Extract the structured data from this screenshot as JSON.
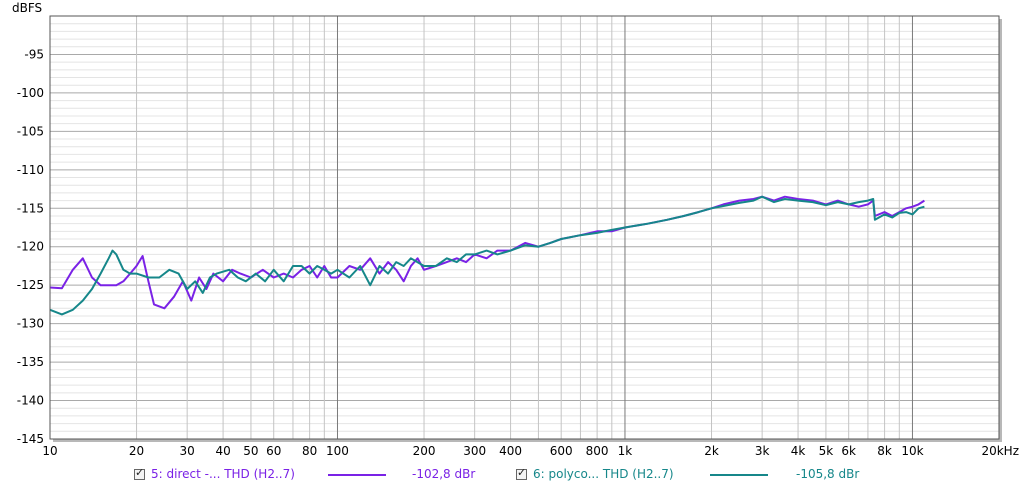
{
  "chart_data": {
    "type": "line",
    "ylabel": "dBFS",
    "xscale": "log",
    "xlim": [
      10,
      20000
    ],
    "ylim": [
      -145,
      -90
    ],
    "y_ticks": [
      -95,
      -100,
      -105,
      -110,
      -115,
      -120,
      -125,
      -130,
      -135,
      -140,
      -145
    ],
    "y_tick_labels": [
      "-95",
      "-100",
      "-105",
      "-110",
      "-115",
      "-120",
      "-125",
      "-130",
      "-135",
      "-140",
      "-145"
    ],
    "x_ticks": [
      10,
      20,
      30,
      40,
      50,
      60,
      80,
      100,
      200,
      300,
      400,
      600,
      800,
      1000,
      2000,
      3000,
      4000,
      5000,
      6000,
      8000,
      10000,
      20000
    ],
    "x_tick_labels": [
      "10",
      "20",
      "30",
      "40",
      "50",
      "60",
      "80",
      "100",
      "200",
      "300",
      "400",
      "600",
      "800",
      "1k",
      "2k",
      "3k",
      "4k",
      "5k",
      "6k",
      "8k",
      "10k",
      "20kHz"
    ],
    "grid": true,
    "series": [
      {
        "name": "5: direct -... THD (H2..7)",
        "color": "#7a22e6",
        "offset_label": "-102,8 dBr",
        "points": [
          [
            10,
            -125.3
          ],
          [
            11,
            -125.4
          ],
          [
            12,
            -123
          ],
          [
            13,
            -121.5
          ],
          [
            14,
            -124
          ],
          [
            15,
            -125
          ],
          [
            17,
            -125
          ],
          [
            18,
            -124.5
          ],
          [
            19,
            -123.5
          ],
          [
            20,
            -122.5
          ],
          [
            21,
            -121.2
          ],
          [
            22,
            -124.5
          ],
          [
            23,
            -127.5
          ],
          [
            25,
            -128
          ],
          [
            27,
            -126.5
          ],
          [
            29,
            -124.5
          ],
          [
            31,
            -127
          ],
          [
            33,
            -124
          ],
          [
            35,
            -125.5
          ],
          [
            37,
            -123.5
          ],
          [
            40,
            -124.5
          ],
          [
            43,
            -123
          ],
          [
            46,
            -123.5
          ],
          [
            50,
            -124
          ],
          [
            55,
            -123
          ],
          [
            60,
            -124
          ],
          [
            65,
            -123.5
          ],
          [
            70,
            -124
          ],
          [
            75,
            -123
          ],
          [
            80,
            -122.5
          ],
          [
            85,
            -124
          ],
          [
            90,
            -122.5
          ],
          [
            95,
            -124
          ],
          [
            100,
            -124
          ],
          [
            110,
            -122.5
          ],
          [
            120,
            -123
          ],
          [
            130,
            -121.5
          ],
          [
            140,
            -123.5
          ],
          [
            150,
            -122
          ],
          [
            160,
            -123
          ],
          [
            170,
            -124.5
          ],
          [
            180,
            -122.5
          ],
          [
            190,
            -121.5
          ],
          [
            200,
            -123
          ],
          [
            220,
            -122.5
          ],
          [
            240,
            -122
          ],
          [
            260,
            -121.5
          ],
          [
            280,
            -122
          ],
          [
            300,
            -121
          ],
          [
            330,
            -121.5
          ],
          [
            360,
            -120.5
          ],
          [
            400,
            -120.5
          ],
          [
            450,
            -119.5
          ],
          [
            500,
            -120
          ],
          [
            550,
            -119.5
          ],
          [
            600,
            -119
          ],
          [
            700,
            -118.5
          ],
          [
            800,
            -118
          ],
          [
            900,
            -118
          ],
          [
            1000,
            -117.5
          ],
          [
            1200,
            -117
          ],
          [
            1400,
            -116.5
          ],
          [
            1600,
            -116
          ],
          [
            1800,
            -115.5
          ],
          [
            2000,
            -115
          ],
          [
            2200,
            -114.5
          ],
          [
            2500,
            -114
          ],
          [
            2800,
            -113.8
          ],
          [
            3000,
            -113.5
          ],
          [
            3300,
            -114
          ],
          [
            3600,
            -113.5
          ],
          [
            4000,
            -113.8
          ],
          [
            4500,
            -114
          ],
          [
            5000,
            -114.5
          ],
          [
            5500,
            -114
          ],
          [
            6000,
            -114.5
          ],
          [
            6500,
            -114.8
          ],
          [
            7000,
            -114.5
          ],
          [
            7300,
            -114
          ],
          [
            7400,
            -116
          ],
          [
            8000,
            -115.5
          ],
          [
            8500,
            -116
          ],
          [
            9000,
            -115.5
          ],
          [
            9500,
            -115
          ],
          [
            10000,
            -114.8
          ],
          [
            10500,
            -114.5
          ],
          [
            11000,
            -114
          ]
        ]
      },
      {
        "name": "6: polyco... THD (H2..7)",
        "color": "#16878a",
        "offset_label": "-105,8 dBr",
        "points": [
          [
            10,
            -128.2
          ],
          [
            11,
            -128.8
          ],
          [
            12,
            -128.2
          ],
          [
            13,
            -127
          ],
          [
            14,
            -125.5
          ],
          [
            15,
            -123.5
          ],
          [
            16,
            -121.5
          ],
          [
            16.5,
            -120.5
          ],
          [
            17,
            -121
          ],
          [
            18,
            -123
          ],
          [
            19,
            -123.5
          ],
          [
            20,
            -123.5
          ],
          [
            22,
            -124
          ],
          [
            24,
            -124
          ],
          [
            26,
            -123
          ],
          [
            28,
            -123.5
          ],
          [
            30,
            -125.5
          ],
          [
            32,
            -124.5
          ],
          [
            34,
            -126
          ],
          [
            36,
            -124
          ],
          [
            38,
            -123.5
          ],
          [
            42,
            -123
          ],
          [
            45,
            -124
          ],
          [
            48,
            -124.5
          ],
          [
            52,
            -123.5
          ],
          [
            56,
            -124.5
          ],
          [
            60,
            -123
          ],
          [
            65,
            -124.5
          ],
          [
            70,
            -122.5
          ],
          [
            75,
            -122.5
          ],
          [
            80,
            -123.5
          ],
          [
            85,
            -122.5
          ],
          [
            90,
            -123
          ],
          [
            95,
            -123.5
          ],
          [
            100,
            -123
          ],
          [
            110,
            -124
          ],
          [
            120,
            -122.5
          ],
          [
            130,
            -125
          ],
          [
            140,
            -122.5
          ],
          [
            150,
            -123.5
          ],
          [
            160,
            -122
          ],
          [
            170,
            -122.5
          ],
          [
            180,
            -121.5
          ],
          [
            200,
            -122.5
          ],
          [
            220,
            -122.5
          ],
          [
            240,
            -121.5
          ],
          [
            260,
            -122
          ],
          [
            280,
            -121
          ],
          [
            300,
            -121
          ],
          [
            330,
            -120.5
          ],
          [
            360,
            -121
          ],
          [
            400,
            -120.5
          ],
          [
            450,
            -119.8
          ],
          [
            500,
            -120
          ],
          [
            550,
            -119.5
          ],
          [
            600,
            -119
          ],
          [
            700,
            -118.5
          ],
          [
            800,
            -118.2
          ],
          [
            900,
            -117.8
          ],
          [
            1000,
            -117.5
          ],
          [
            1200,
            -117
          ],
          [
            1400,
            -116.5
          ],
          [
            1600,
            -116
          ],
          [
            1800,
            -115.5
          ],
          [
            2000,
            -115
          ],
          [
            2200,
            -114.7
          ],
          [
            2500,
            -114.3
          ],
          [
            2800,
            -114
          ],
          [
            3000,
            -113.5
          ],
          [
            3300,
            -114.2
          ],
          [
            3600,
            -113.8
          ],
          [
            4000,
            -114
          ],
          [
            4500,
            -114.2
          ],
          [
            5000,
            -114.6
          ],
          [
            5500,
            -114.2
          ],
          [
            6000,
            -114.5
          ],
          [
            6500,
            -114.2
          ],
          [
            7000,
            -114
          ],
          [
            7300,
            -113.8
          ],
          [
            7400,
            -116.5
          ],
          [
            8000,
            -115.8
          ],
          [
            8500,
            -116.2
          ],
          [
            9000,
            -115.6
          ],
          [
            9500,
            -115.5
          ],
          [
            10000,
            -115.8
          ],
          [
            10500,
            -115
          ],
          [
            11000,
            -114.8
          ]
        ]
      }
    ]
  }
}
